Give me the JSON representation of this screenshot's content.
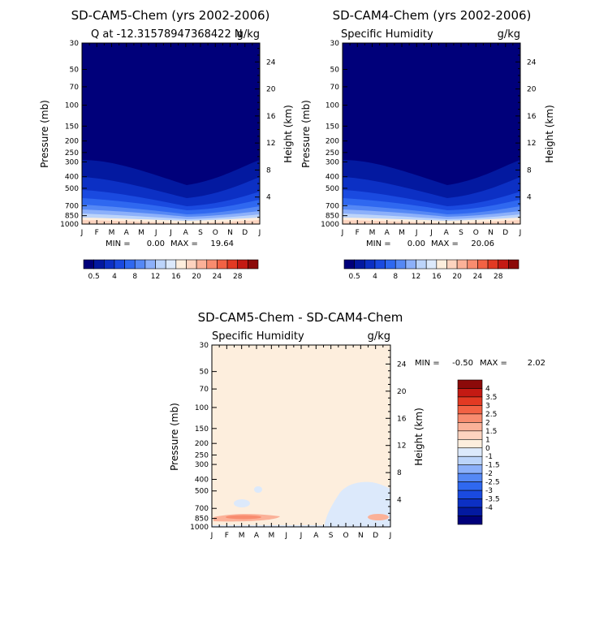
{
  "colors": {
    "q": [
      "#00007a",
      "#0319a0",
      "#0c30c4",
      "#1a4ae0",
      "#2f68f0",
      "#5588f5",
      "#8cb0fa",
      "#bcd4fa",
      "#dce9fb",
      "#fdeedd",
      "#fdd3bf",
      "#fbb198",
      "#f88c6f",
      "#f26244",
      "#e23a23",
      "#c41a13",
      "#8c0a09"
    ],
    "diff": [
      "#00007a",
      "#0319a0",
      "#0c30c4",
      "#1a4ae0",
      "#2f68f0",
      "#5588f5",
      "#8cb0fa",
      "#bcd4fa",
      "#dce9fb",
      "#fdeedd",
      "#fdd3bf",
      "#fbb198",
      "#f88c6f",
      "#f26244",
      "#e23a23",
      "#c41a13",
      "#8c0a09"
    ]
  },
  "months": [
    "J",
    "F",
    "M",
    "A",
    "M",
    "J",
    "J",
    "A",
    "S",
    "O",
    "N",
    "D",
    "J"
  ],
  "pressure_ticks": [
    "30",
    "50",
    "70",
    "100",
    "150",
    "200",
    "250",
    "300",
    "400",
    "500",
    "700",
    "850",
    "1000"
  ],
  "height_ticks": [
    "24",
    "20",
    "16",
    "12",
    "8",
    "4"
  ],
  "pressure_label": "Pressure (mb)",
  "height_label": "Height (km)",
  "panel1": {
    "title": "SD-CAM5-Chem (yrs 2002-2006)",
    "subtitle_left": "Q at -12.31578947368422 N",
    "subtitle_right": "g/kg",
    "min_label": "MIN =",
    "min": "0.00",
    "max_label": "MAX =",
    "max": "19.64"
  },
  "panel2": {
    "title": "SD-CAM4-Chem (yrs 2002-2006)",
    "subtitle_left": "Specific Humidity",
    "subtitle_right": "g/kg",
    "min_label": "MIN =",
    "min": "0.00",
    "max_label": "MAX =",
    "max": "20.06"
  },
  "panel3": {
    "title": "SD-CAM5-Chem - SD-CAM4-Chem",
    "subtitle_left": "Specific Humidity",
    "subtitle_right": "g/kg",
    "min_label": "MIN =",
    "min": "-0.50",
    "max_label": "MAX =",
    "max": "2.02"
  },
  "colorbar_h": {
    "labels": [
      "0.5",
      "4",
      "8",
      "12",
      "16",
      "20",
      "24",
      "28"
    ]
  },
  "colorbar_v": {
    "labels": [
      "4",
      "3.5",
      "3",
      "2.5",
      "2",
      "1.5",
      "1",
      "0",
      "-1",
      "-1.5",
      "-2",
      "-2.5",
      "-3",
      "-3.5",
      "-4"
    ]
  },
  "chart_data": [
    {
      "type": "heatmap",
      "title": "SD-CAM5-Chem (yrs 2002-2006)",
      "subtitle": "Q at -12.31578947368422 N",
      "units": "g/kg",
      "x": [
        "J",
        "F",
        "M",
        "A",
        "M",
        "J",
        "J",
        "A",
        "S",
        "O",
        "N",
        "D",
        "J"
      ],
      "y_pressure_mb": [
        1000,
        850,
        700,
        500,
        400,
        300,
        250,
        200,
        150,
        100,
        70,
        50,
        30
      ],
      "ylabel": "Pressure (mb)",
      "ylabel_right": "Height (km)",
      "min": 0.0,
      "max": 19.64,
      "contour_levels": [
        0.5,
        4,
        8,
        12,
        16,
        20,
        24,
        28
      ],
      "moist_layer_top_pressure_mb_by_month": [
        270,
        275,
        290,
        310,
        350,
        390,
        420,
        440,
        410,
        340,
        300,
        280,
        270
      ]
    },
    {
      "type": "heatmap",
      "title": "SD-CAM4-Chem (yrs 2002-2006)",
      "subtitle": "Specific Humidity",
      "units": "g/kg",
      "x": [
        "J",
        "F",
        "M",
        "A",
        "M",
        "J",
        "J",
        "A",
        "S",
        "O",
        "N",
        "D",
        "J"
      ],
      "y_pressure_mb": [
        1000,
        850,
        700,
        500,
        400,
        300,
        250,
        200,
        150,
        100,
        70,
        50,
        30
      ],
      "ylabel": "Pressure (mb)",
      "ylabel_right": "Height (km)",
      "min": 0.0,
      "max": 20.06,
      "contour_levels": [
        0.5,
        4,
        8,
        12,
        16,
        20,
        24,
        28
      ],
      "moist_layer_top_pressure_mb_by_month": [
        270,
        275,
        290,
        310,
        350,
        390,
        420,
        440,
        410,
        340,
        300,
        280,
        270
      ]
    },
    {
      "type": "heatmap",
      "title": "SD-CAM5-Chem - SD-CAM4-Chem",
      "subtitle": "Specific Humidity",
      "units": "g/kg",
      "x": [
        "J",
        "F",
        "M",
        "A",
        "M",
        "J",
        "J",
        "A",
        "S",
        "O",
        "N",
        "D",
        "J"
      ],
      "y_pressure_mb": [
        1000,
        850,
        700,
        500,
        400,
        300,
        250,
        200,
        150,
        100,
        70,
        50,
        30
      ],
      "ylabel": "Pressure (mb)",
      "ylabel_right": "Height (km)",
      "min": -0.5,
      "max": 2.02,
      "contour_levels": [
        -4,
        -3.5,
        -3,
        -2.5,
        -2,
        -1.5,
        -1,
        0,
        1,
        1.5,
        2,
        2.5,
        3,
        3.5,
        4
      ]
    }
  ]
}
